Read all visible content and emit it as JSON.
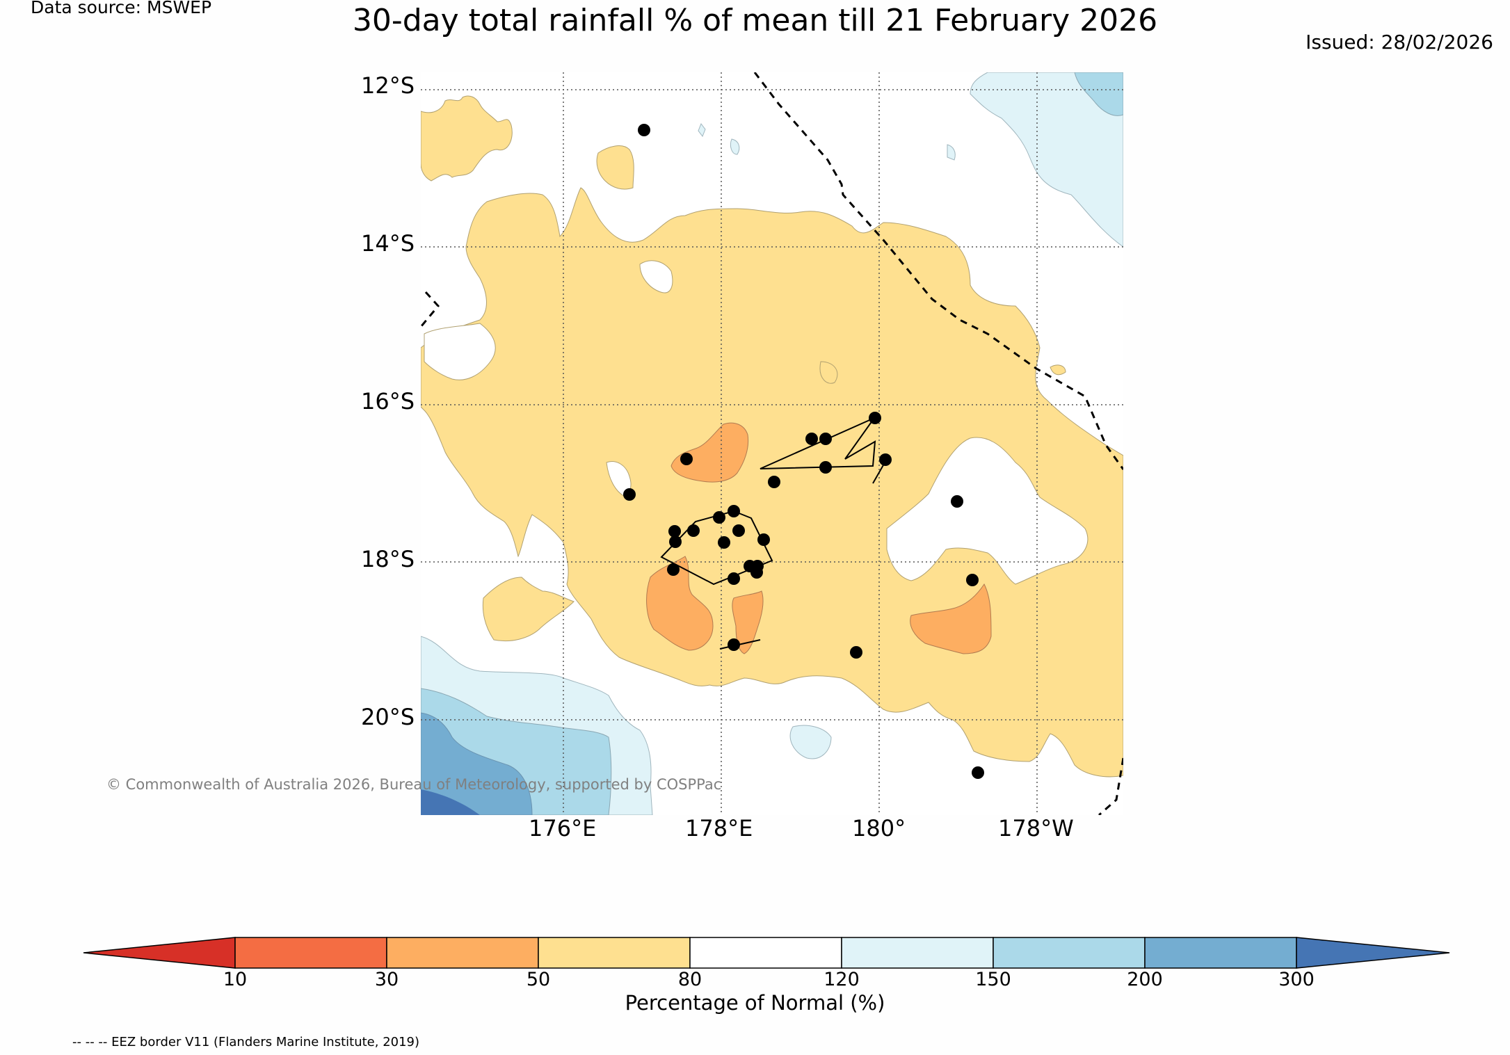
{
  "header": {
    "data_source": "Data source: MSWEP",
    "title": "30-day total rainfall % of mean till 21 February 2026",
    "issued": "Issued: 28/02/2026"
  },
  "map": {
    "lat_labels": [
      "12°S",
      "14°S",
      "16°S",
      "18°S",
      "20°S"
    ],
    "lon_labels": [
      "176°E",
      "178°E",
      "180°",
      "178°W"
    ],
    "copyright": "© Commonwealth of Australia 2026, Bureau of Meteorology, supported by COSPPac"
  },
  "colorbar": {
    "label": "Percentage of Normal (%)",
    "ticks": [
      "10",
      "30",
      "50",
      "80",
      "120",
      "150",
      "200",
      "300"
    ],
    "colors": {
      "below_10": "#d73027",
      "c10_30": "#f46d43",
      "c30_50": "#fdae61",
      "c50_80": "#fee090",
      "c80_120": "#ffffff",
      "c120_150": "#e0f3f8",
      "c150_200": "#abd9e9",
      "c200_300": "#74add1",
      "above_300": "#4575b4"
    }
  },
  "footer": {
    "eez_note": "-- -- -- EEZ border V11 (Flanders Marine Institute, 2019)"
  }
}
